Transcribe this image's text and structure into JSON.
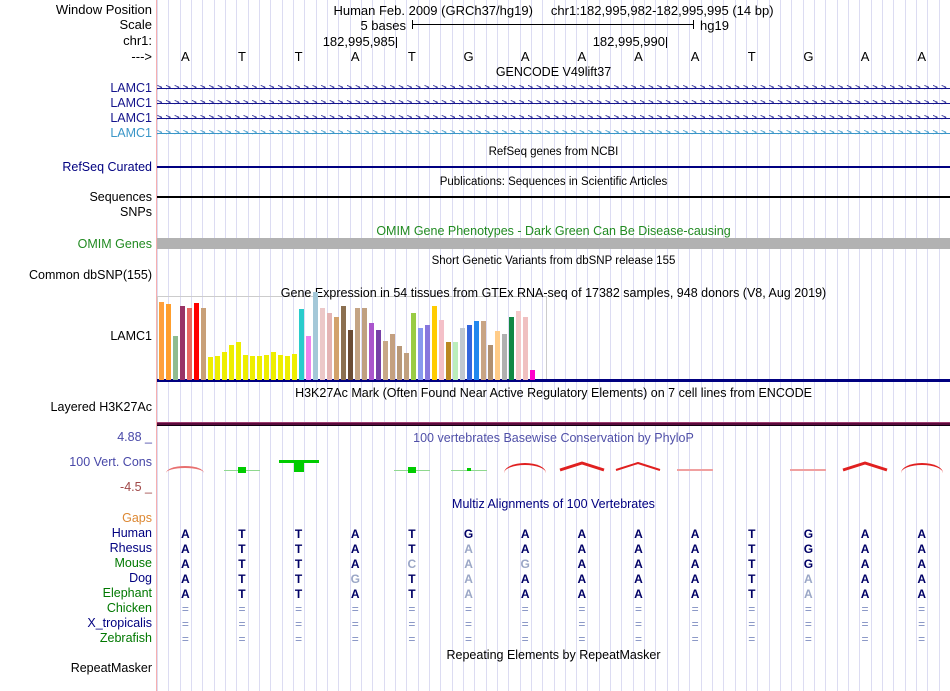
{
  "header": {
    "window_position_label": "Window Position",
    "assembly_title": "Human Feb. 2009 (GRCh37/hg19)",
    "position": "chr1:182,995,982-182,995,995 (14 bp)",
    "scale_label": "Scale",
    "scale_value": "5 bases",
    "scale_genome": "hg19",
    "chrom_label": "chr1:",
    "coord_left": "182,995,985",
    "coord_right": "182,995,990",
    "strand_arrow": "--->"
  },
  "sequence": {
    "bases": [
      "A",
      "T",
      "T",
      "A",
      "T",
      "G",
      "A",
      "A",
      "A",
      "A",
      "T",
      "G",
      "A",
      "A"
    ]
  },
  "colors": {
    "gene_navy": "#14148c",
    "gene_lightblue": "#3a96c8",
    "track_label_navy": "#000080",
    "omim_green": "#228B22",
    "gridline": "#dcdcf2",
    "guide_pink": "#f6afaf",
    "gtex_baseline": "#000080",
    "phylop_pos": "#e03030",
    "phylop_neg": "#00cc00"
  },
  "tracks": {
    "gencode": {
      "title": "GENCODE V49lift37",
      "genes": [
        {
          "label": "LAMC1",
          "color": "#14148c"
        },
        {
          "label": "LAMC1",
          "color": "#14148c"
        },
        {
          "label": "LAMC1",
          "color": "#14148c"
        },
        {
          "label": "LAMC1",
          "color": "#3a96c8"
        }
      ]
    },
    "refseq": {
      "title": "RefSeq genes from NCBI",
      "label": "RefSeq Curated"
    },
    "publications": {
      "title": "Publications: Sequences in Scientific Articles",
      "label": "Sequences"
    },
    "snps": {
      "label": "SNPs"
    },
    "omim": {
      "title": "OMIM Gene Phenotypes - Dark Green Can Be Disease-causing",
      "label": "OMIM Genes"
    },
    "dbsnp": {
      "title": "Short Genetic Variants from dbSNP release 155",
      "label": "Common dbSNP(155)"
    },
    "gtex": {
      "title": "Gene Expression in 54 tissues from GTEx RNA-seq of 17382 samples, 948 donors (V8, Aug 2019)",
      "label": "LAMC1"
    },
    "h3k27ac": {
      "title": "H3K27Ac Mark (Often Found Near Active Regulatory Elements) on 7 cell lines from ENCODE",
      "label": "Layered H3K27Ac"
    },
    "phylop": {
      "title": "100 vertebrates Basewise Conservation by PhyloP",
      "label": "100 Vert. Cons",
      "max": "4.88 _",
      "min": "-4.5 _",
      "marks": [
        {
          "base": 1,
          "shape": "arc",
          "size": "small"
        },
        {
          "base": 2,
          "shape": "green-dot",
          "size": "medium"
        },
        {
          "base": 3,
          "shape": "green-block",
          "size": "large"
        },
        {
          "base": 5,
          "shape": "green-dot",
          "size": "medium"
        },
        {
          "base": 6,
          "shape": "green-dot",
          "size": "small"
        },
        {
          "base": 7,
          "shape": "arc",
          "size": "medium"
        },
        {
          "base": 8,
          "shape": "tent",
          "size": "large"
        },
        {
          "base": 9,
          "shape": "tent",
          "size": "medium"
        },
        {
          "base": 10,
          "shape": "flat",
          "size": "small"
        },
        {
          "base": 12,
          "shape": "flat",
          "size": "small"
        },
        {
          "base": 13,
          "shape": "tent",
          "size": "large"
        },
        {
          "base": 14,
          "shape": "arc",
          "size": "medium"
        }
      ]
    },
    "multiz": {
      "title": "Multiz Alignments of 100 Vertebrates",
      "rows": [
        {
          "label": "Gaps",
          "label_color": "#dd8833",
          "cells": [
            "",
            "",
            "",
            "",
            "",
            "",
            "",
            "",
            "",
            "",
            "",
            "",
            "",
            ""
          ],
          "dim": [
            0,
            0,
            0,
            0,
            0,
            0,
            0,
            0,
            0,
            0,
            0,
            0,
            0,
            0
          ]
        },
        {
          "label": "Human",
          "label_color": "#000080",
          "cells": [
            "A",
            "T",
            "T",
            "A",
            "T",
            "G",
            "A",
            "A",
            "A",
            "A",
            "T",
            "G",
            "A",
            "A"
          ],
          "dim": [
            0,
            0,
            0,
            0,
            0,
            0,
            0,
            0,
            0,
            0,
            0,
            0,
            0,
            0
          ]
        },
        {
          "label": "Rhesus",
          "label_color": "#000080",
          "cells": [
            "A",
            "T",
            "T",
            "A",
            "T",
            "A",
            "A",
            "A",
            "A",
            "A",
            "T",
            "G",
            "A",
            "A"
          ],
          "dim": [
            0,
            0,
            0,
            0,
            0,
            1,
            0,
            0,
            0,
            0,
            0,
            0,
            0,
            0
          ]
        },
        {
          "label": "Mouse",
          "label_color": "#007800",
          "cells": [
            "A",
            "T",
            "T",
            "A",
            "C",
            "A",
            "G",
            "A",
            "A",
            "A",
            "T",
            "G",
            "A",
            "A"
          ],
          "dim": [
            0,
            0,
            0,
            0,
            1,
            1,
            1,
            0,
            0,
            0,
            0,
            0,
            0,
            0
          ]
        },
        {
          "label": "Dog",
          "label_color": "#000080",
          "cells": [
            "A",
            "T",
            "T",
            "G",
            "T",
            "A",
            "A",
            "A",
            "A",
            "A",
            "T",
            "A",
            "A",
            "A"
          ],
          "dim": [
            0,
            0,
            0,
            1,
            0,
            1,
            0,
            0,
            0,
            0,
            0,
            1,
            0,
            0
          ]
        },
        {
          "label": "Elephant",
          "label_color": "#007800",
          "cells": [
            "A",
            "T",
            "T",
            "A",
            "T",
            "A",
            "A",
            "A",
            "A",
            "A",
            "T",
            "A",
            "A",
            "A"
          ],
          "dim": [
            0,
            0,
            0,
            0,
            0,
            1,
            0,
            0,
            0,
            0,
            0,
            1,
            0,
            0
          ]
        },
        {
          "label": "Chicken",
          "label_color": "#007800",
          "cells": [
            "=",
            "=",
            "=",
            "=",
            "=",
            "=",
            "=",
            "=",
            "=",
            "=",
            "=",
            "=",
            "=",
            "="
          ],
          "gap": true
        },
        {
          "label": "X_tropicalis",
          "label_color": "#000080",
          "cells": [
            "=",
            "=",
            "=",
            "=",
            "=",
            "=",
            "=",
            "=",
            "=",
            "=",
            "=",
            "=",
            "=",
            "="
          ],
          "gap": true
        },
        {
          "label": "Zebrafish",
          "label_color": "#007800",
          "cells": [
            "=",
            "=",
            "=",
            "=",
            "=",
            "=",
            "=",
            "=",
            "=",
            "=",
            "=",
            "=",
            "=",
            "="
          ],
          "gap": true
        }
      ]
    },
    "repeatmasker": {
      "title": "Repeating Elements by RepeatMasker",
      "label": "RepeatMasker"
    }
  },
  "chart_data": {
    "type": "bar",
    "title": "Gene Expression in 54 tissues from GTEx RNA-seq of 17382 samples, 948 donors (V8, Aug 2019)",
    "gene": "LAMC1",
    "ylabel": "relative expression (bar height fraction of track, estimated from pixels)",
    "ylim": [
      0,
      1.05
    ],
    "bars": [
      {
        "color": "#FFA03C",
        "h": 0.93
      },
      {
        "color": "#FF9E2C",
        "h": 0.9
      },
      {
        "color": "#8FBC8F",
        "h": 0.52
      },
      {
        "color": "#993366",
        "h": 0.88
      },
      {
        "color": "#E86860",
        "h": 0.86
      },
      {
        "color": "#FF0000",
        "h": 0.92
      },
      {
        "color": "#C8A078",
        "h": 0.86
      },
      {
        "color": "#EEEE00",
        "h": 0.27
      },
      {
        "color": "#EEEE00",
        "h": 0.28
      },
      {
        "color": "#EEEE00",
        "h": 0.33
      },
      {
        "color": "#EEEE00",
        "h": 0.42
      },
      {
        "color": "#EEEE00",
        "h": 0.45
      },
      {
        "color": "#EEEE00",
        "h": 0.3
      },
      {
        "color": "#EEEE00",
        "h": 0.29
      },
      {
        "color": "#EEEE00",
        "h": 0.28
      },
      {
        "color": "#EEEE00",
        "h": 0.3
      },
      {
        "color": "#EEEE00",
        "h": 0.33
      },
      {
        "color": "#EEEE00",
        "h": 0.3
      },
      {
        "color": "#EEEE00",
        "h": 0.29
      },
      {
        "color": "#EEEE00",
        "h": 0.31
      },
      {
        "color": "#29CCCC",
        "h": 0.85
      },
      {
        "color": "#EE82EE",
        "h": 0.52
      },
      {
        "color": "#A4C8D8",
        "h": 1.05
      },
      {
        "color": "#ECC8C8",
        "h": 0.86
      },
      {
        "color": "#E4B4B4",
        "h": 0.8
      },
      {
        "color": "#D2A26C",
        "h": 0.75
      },
      {
        "color": "#8B7050",
        "h": 0.88
      },
      {
        "color": "#6B4C34",
        "h": 0.6
      },
      {
        "color": "#C4A484",
        "h": 0.86
      },
      {
        "color": "#C0A080",
        "h": 0.86
      },
      {
        "color": "#AA55CC",
        "h": 0.68
      },
      {
        "color": "#7740A8",
        "h": 0.6
      },
      {
        "color": "#C8A888",
        "h": 0.46
      },
      {
        "color": "#C4A080",
        "h": 0.55
      },
      {
        "color": "#B89878",
        "h": 0.4
      },
      {
        "color": "#C0A080",
        "h": 0.32
      },
      {
        "color": "#99CC44",
        "h": 0.8
      },
      {
        "color": "#8899EE",
        "h": 0.62
      },
      {
        "color": "#8877DD",
        "h": 0.65
      },
      {
        "color": "#FFCC00",
        "h": 0.88
      },
      {
        "color": "#F4C0C8",
        "h": 0.72
      },
      {
        "color": "#BB8822",
        "h": 0.45
      },
      {
        "color": "#BBEEBB",
        "h": 0.45
      },
      {
        "color": "#C0C8D0",
        "h": 0.62
      },
      {
        "color": "#3366DD",
        "h": 0.65
      },
      {
        "color": "#2288EE",
        "h": 0.7
      },
      {
        "color": "#C8A484",
        "h": 0.7
      },
      {
        "color": "#B09070",
        "h": 0.42
      },
      {
        "color": "#FFCC88",
        "h": 0.58
      },
      {
        "color": "#B0B0B0",
        "h": 0.55
      },
      {
        "color": "#118844",
        "h": 0.75
      },
      {
        "color": "#F4C8C8",
        "h": 0.82
      },
      {
        "color": "#F0C0C0",
        "h": 0.75
      },
      {
        "color": "#FF00CC",
        "h": 0.12
      }
    ]
  }
}
